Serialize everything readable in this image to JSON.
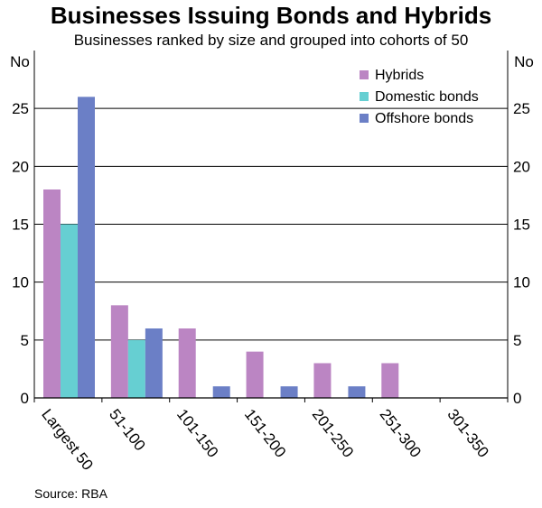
{
  "chart_data": {
    "type": "bar",
    "title": "Businesses Issuing Bonds and Hybrids",
    "subtitle": "Businesses ranked by size and grouped into cohorts of 50",
    "ylabel_left": "No",
    "ylabel_right": "No",
    "ylim": [
      0,
      30
    ],
    "yticks": [
      0,
      5,
      10,
      15,
      20,
      25
    ],
    "grid": true,
    "legend_position": "top-right",
    "categories": [
      "Largest 50",
      "51-100",
      "101-150",
      "151-200",
      "201-250",
      "251-300",
      "301-350"
    ],
    "series": [
      {
        "name": "Hybrids",
        "color": "#bb85c3",
        "values": [
          18,
          8,
          6,
          4,
          3,
          3,
          0
        ]
      },
      {
        "name": "Domestic bonds",
        "color": "#66cfd2",
        "values": [
          15,
          5,
          0,
          0,
          0,
          0,
          0
        ]
      },
      {
        "name": "Offshore bonds",
        "color": "#6b7fc6",
        "values": [
          26,
          6,
          1,
          1,
          1,
          0,
          0
        ]
      }
    ],
    "source": "Source: RBA"
  }
}
